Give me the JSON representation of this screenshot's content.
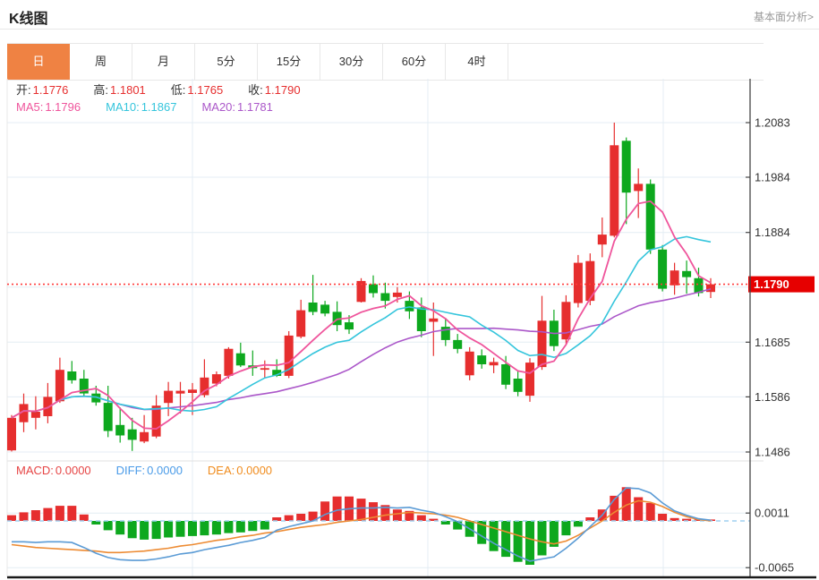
{
  "header": {
    "title": "K线图",
    "link": "基本面分析>"
  },
  "tabs": {
    "items": [
      "日",
      "周",
      "月",
      "5分",
      "15分",
      "30分",
      "60分",
      "4时"
    ],
    "active_index": 0,
    "active_bg": "#ef8243"
  },
  "legend": {
    "ohlc": [
      {
        "name": "open",
        "label": "开:",
        "value": "1.1776"
      },
      {
        "name": "high",
        "label": "高:",
        "value": "1.1801"
      },
      {
        "name": "low",
        "label": "低:",
        "value": "1.1765"
      },
      {
        "name": "close",
        "label": "收:",
        "value": "1.1790"
      }
    ],
    "ohlc_label_color": "#333333",
    "ohlc_value_color": "#e62e2e",
    "ma": [
      {
        "name": "ma5",
        "label": "MA5:",
        "value": "1.1796",
        "color": "#ef559c"
      },
      {
        "name": "ma10",
        "label": "MA10:",
        "value": "1.1867",
        "color": "#35c5dc"
      },
      {
        "name": "ma20",
        "label": "MA20:",
        "value": "1.1781",
        "color": "#ab57c9"
      }
    ],
    "macd": [
      {
        "name": "macd",
        "label": "MACD:",
        "value": "0.0000",
        "color": "#e64545"
      },
      {
        "name": "diff",
        "label": "DIFF:",
        "value": "0.0000",
        "color": "#4a9be8"
      },
      {
        "name": "dea",
        "label": "DEA:",
        "value": "0.0000",
        "color": "#f08c1e"
      }
    ]
  },
  "colors": {
    "up": "#e62e2e",
    "down": "#0da81e",
    "ma5": "#ef559c",
    "ma10": "#35c5dc",
    "ma20": "#ab57c9",
    "diff_line": "#5b9bd5",
    "dea_line": "#ed8b33",
    "grid": "#e4edf4",
    "zero_dash": "#9fd0f0",
    "axis_line": "#444444",
    "axis_text": "#333333",
    "price_line": "#ff3b3b",
    "price_badge_bg": "#e60000",
    "price_badge_text": "#ffffff",
    "panel_divider": "#e0e0e0",
    "bottom_border": "#1a1a1a",
    "left_border": "#e8e8e8"
  },
  "chart_data": {
    "type": "candlestick",
    "title": "K线图 (daily K-line with MA5/MA10/MA20 and MACD)",
    "price_axis": {
      "tick_labels": [
        "1.2083",
        "1.1984",
        "1.1884",
        "1.1685",
        "1.1586",
        "1.1486"
      ],
      "tick_values": [
        1.2083,
        1.1984,
        1.1884,
        1.1685,
        1.1586,
        1.1486
      ],
      "gridline_values": [
        1.2083,
        1.1984,
        1.1884,
        1.1785,
        1.1685,
        1.1586,
        1.1486
      ],
      "range": [
        1.1486,
        1.2083
      ],
      "current_price": "1.1790",
      "current_price_value": 1.179
    },
    "ma_periods": [
      5,
      10,
      20
    ],
    "candles_format": [
      "open",
      "high",
      "low",
      "close"
    ],
    "candles": [
      [
        1.1489,
        1.1553,
        1.1487,
        1.1548
      ],
      [
        1.154,
        1.1592,
        1.1522,
        1.1573
      ],
      [
        1.1548,
        1.1587,
        1.1527,
        1.1559
      ],
      [
        1.1551,
        1.1611,
        1.1538,
        1.1586
      ],
      [
        1.1578,
        1.1657,
        1.1575,
        1.1635
      ],
      [
        1.1632,
        1.1651,
        1.161,
        1.1616
      ],
      [
        1.1619,
        1.1635,
        1.1586,
        1.1592
      ],
      [
        1.1592,
        1.1606,
        1.157,
        1.1576
      ],
      [
        1.1575,
        1.1606,
        1.1513,
        1.1524
      ],
      [
        1.1535,
        1.1567,
        1.1503,
        1.1516
      ],
      [
        1.1527,
        1.1548,
        1.1488,
        1.1508
      ],
      [
        1.1505,
        1.1553,
        1.1502,
        1.1522
      ],
      [
        1.1514,
        1.1589,
        1.1511,
        1.157
      ],
      [
        1.1575,
        1.1613,
        1.1551,
        1.1597
      ],
      [
        1.1592,
        1.1613,
        1.1556,
        1.1597
      ],
      [
        1.1593,
        1.1611,
        1.1553,
        1.1599
      ],
      [
        1.1589,
        1.1654,
        1.1585,
        1.1621
      ],
      [
        1.161,
        1.1632,
        1.1605,
        1.1627
      ],
      [
        1.1624,
        1.1676,
        1.1619,
        1.1673
      ],
      [
        1.1665,
        1.1684,
        1.164,
        1.1643
      ],
      [
        1.1643,
        1.167,
        1.1624,
        1.1638
      ],
      [
        1.1635,
        1.1652,
        1.162,
        1.1638
      ],
      [
        1.1635,
        1.1654,
        1.1622,
        1.1624
      ],
      [
        1.1624,
        1.1705,
        1.162,
        1.1697
      ],
      [
        1.1695,
        1.1762,
        1.1692,
        1.1743
      ],
      [
        1.1757,
        1.1807,
        1.1734,
        1.174
      ],
      [
        1.1753,
        1.176,
        1.1732,
        1.1737
      ],
      [
        1.174,
        1.1759,
        1.1705,
        1.1716
      ],
      [
        1.1721,
        1.1734,
        1.17,
        1.1708
      ],
      [
        1.1758,
        1.1801,
        1.1757,
        1.1796
      ],
      [
        1.179,
        1.1806,
        1.1766,
        1.1774
      ],
      [
        1.1774,
        1.1793,
        1.1746,
        1.176
      ],
      [
        1.1767,
        1.1785,
        1.1757,
        1.1775
      ],
      [
        1.176,
        1.1777,
        1.1727,
        1.1741
      ],
      [
        1.1748,
        1.1766,
        1.1694,
        1.1705
      ],
      [
        1.1722,
        1.1757,
        1.166,
        1.1728
      ],
      [
        1.1713,
        1.1729,
        1.1678,
        1.1689
      ],
      [
        1.1689,
        1.17,
        1.1665,
        1.1673
      ],
      [
        1.1625,
        1.1676,
        1.1616,
        1.1668
      ],
      [
        1.1661,
        1.1672,
        1.1637,
        1.1645
      ],
      [
        1.1643,
        1.1657,
        1.1629,
        1.1649
      ],
      [
        1.1645,
        1.166,
        1.16,
        1.1608
      ],
      [
        1.1619,
        1.1632,
        1.1587,
        1.1595
      ],
      [
        1.1588,
        1.1656,
        1.1577,
        1.1648
      ],
      [
        1.164,
        1.1769,
        1.1635,
        1.1724
      ],
      [
        1.1724,
        1.1744,
        1.1669,
        1.1678
      ],
      [
        1.169,
        1.177,
        1.1682,
        1.1758
      ],
      [
        1.1756,
        1.1843,
        1.1748,
        1.1829
      ],
      [
        1.176,
        1.1846,
        1.1752,
        1.1832
      ],
      [
        1.1862,
        1.1911,
        1.1839,
        1.188
      ],
      [
        1.1878,
        1.2083,
        1.1875,
        1.2042
      ],
      [
        1.205,
        1.2056,
        1.1899,
        1.1956
      ],
      [
        1.1959,
        1.2,
        1.191,
        1.1972
      ],
      [
        1.1972,
        1.198,
        1.1845,
        1.1853
      ],
      [
        1.1853,
        1.1861,
        1.1777,
        1.1782
      ],
      [
        1.1788,
        1.1829,
        1.1771,
        1.1815
      ],
      [
        1.1814,
        1.1833,
        1.1773,
        1.1803
      ],
      [
        1.1801,
        1.182,
        1.1768,
        1.1774
      ],
      [
        1.1776,
        1.1801,
        1.1765,
        1.179
      ]
    ],
    "macd": {
      "axis_tick_labels": [
        "0.0011",
        "-0.0065"
      ],
      "axis_tick_values": [
        0.0011,
        -0.0065
      ],
      "hist": [
        0.0008,
        0.0012,
        0.0015,
        0.0018,
        0.0021,
        0.0021,
        0.0009,
        -0.0005,
        -0.0013,
        -0.0019,
        -0.0024,
        -0.0026,
        -0.0025,
        -0.0023,
        -0.0022,
        -0.0021,
        -0.002,
        -0.0019,
        -0.0017,
        -0.0016,
        -0.0014,
        -0.0012,
        0.0005,
        0.0008,
        0.001,
        0.0013,
        0.0027,
        0.0034,
        0.0034,
        0.0031,
        0.0026,
        0.0022,
        0.0016,
        0.0014,
        0.0008,
        0.0003,
        -0.0005,
        -0.0012,
        -0.0022,
        -0.0032,
        -0.0042,
        -0.005,
        -0.0057,
        -0.0061,
        -0.0048,
        -0.0036,
        -0.002,
        -0.0008,
        0.0005,
        0.0016,
        0.0035,
        0.0047,
        0.0033,
        0.0025,
        0.001,
        0.0004,
        0.0003,
        0.0002,
        0.0002
      ],
      "diff": [
        -0.0029,
        -0.0029,
        -0.003,
        -0.0029,
        -0.0029,
        -0.003,
        -0.0037,
        -0.0045,
        -0.0051,
        -0.0054,
        -0.0055,
        -0.0055,
        -0.0053,
        -0.005,
        -0.0046,
        -0.0044,
        -0.004,
        -0.0037,
        -0.0034,
        -0.003,
        -0.0027,
        -0.0023,
        -0.0013,
        -0.0008,
        -0.0004,
        0.0,
        0.0009,
        0.0015,
        0.0017,
        0.0018,
        0.0018,
        0.0019,
        0.0018,
        0.0019,
        0.0015,
        0.0012,
        0.0006,
        -0.0001,
        -0.0011,
        -0.0021,
        -0.0031,
        -0.004,
        -0.0049,
        -0.0056,
        -0.0053,
        -0.005,
        -0.0038,
        -0.0024,
        -0.0008,
        0.0008,
        0.003,
        0.0046,
        0.0045,
        0.0039,
        0.0025,
        0.0014,
        0.0008,
        0.0003,
        0.0001
      ],
      "dea": [
        -0.0033,
        -0.0035,
        -0.0037,
        -0.0038,
        -0.0039,
        -0.004,
        -0.0041,
        -0.0042,
        -0.0044,
        -0.0044,
        -0.0043,
        -0.0042,
        -0.004,
        -0.0038,
        -0.0035,
        -0.0033,
        -0.003,
        -0.0027,
        -0.0025,
        -0.0022,
        -0.002,
        -0.0017,
        -0.0015,
        -0.0012,
        -0.0009,
        -0.0007,
        -0.0005,
        -0.0002,
        0.0,
        0.0002,
        0.0005,
        0.0008,
        0.001,
        0.0012,
        0.0011,
        0.001,
        0.0008,
        0.0005,
        0.0,
        -0.0005,
        -0.001,
        -0.0015,
        -0.002,
        -0.0025,
        -0.0029,
        -0.0032,
        -0.0028,
        -0.002,
        -0.001,
        0.0,
        0.0012,
        0.0022,
        0.0028,
        0.0026,
        0.002,
        0.0012,
        0.0006,
        0.0002,
        0.0
      ]
    }
  }
}
